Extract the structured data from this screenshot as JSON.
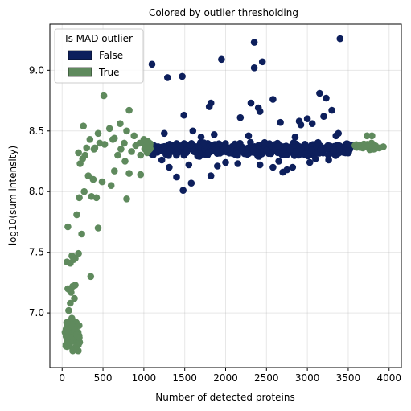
{
  "chart_data": {
    "type": "scatter",
    "title": "Colored by outlier thresholding",
    "xlabel": "Number of detected proteins",
    "ylabel": "log10(sum intensity)",
    "xlim": [
      -150,
      4150
    ],
    "ylim": [
      6.55,
      9.38
    ],
    "xticks": [
      0,
      500,
      1000,
      1500,
      2000,
      2500,
      3000,
      3500,
      4000
    ],
    "xtick_labels": [
      "0",
      "500",
      "1000",
      "1500",
      "2000",
      "2500",
      "3000",
      "3500",
      "4000"
    ],
    "yticks": [
      7.0,
      7.5,
      8.0,
      8.5,
      9.0
    ],
    "ytick_labels": [
      "7.0",
      "7.5",
      "8.0",
      "8.5",
      "9.0"
    ],
    "grid": true,
    "legend": {
      "title": "Is MAD outlier",
      "placement": "top-left",
      "entries": [
        "False",
        "True"
      ]
    },
    "colors": {
      "False": "#0d1f5c",
      "True": "#5f8a5d"
    },
    "series": [
      {
        "name": "False",
        "color": "#0d1f5c",
        "points": [
          [
            1100,
            9.05
          ],
          [
            1290,
            8.94
          ],
          [
            1470,
            8.95
          ],
          [
            1820,
            8.73
          ],
          [
            1800,
            8.7
          ],
          [
            1950,
            9.09
          ],
          [
            2350,
            9.23
          ],
          [
            2350,
            9.02
          ],
          [
            2450,
            9.07
          ],
          [
            2310,
            8.73
          ],
          [
            2400,
            8.69
          ],
          [
            2420,
            8.66
          ],
          [
            2580,
            8.76
          ],
          [
            3400,
            9.26
          ],
          [
            3150,
            8.81
          ],
          [
            3230,
            8.77
          ],
          [
            3300,
            8.67
          ],
          [
            3200,
            8.62
          ],
          [
            3000,
            8.6
          ],
          [
            2180,
            8.61
          ],
          [
            2670,
            8.57
          ],
          [
            2900,
            8.58
          ],
          [
            3060,
            8.56
          ],
          [
            3380,
            8.48
          ],
          [
            1490,
            8.63
          ],
          [
            1310,
            8.2
          ],
          [
            1400,
            8.12
          ],
          [
            1480,
            8.01
          ],
          [
            1580,
            8.07
          ],
          [
            1820,
            8.13
          ],
          [
            1900,
            8.21
          ],
          [
            2420,
            8.22
          ],
          [
            2580,
            8.2
          ],
          [
            2700,
            8.16
          ],
          [
            2750,
            8.18
          ],
          [
            2820,
            8.2
          ],
          [
            3030,
            8.24
          ],
          [
            3100,
            8.27
          ],
          [
            3260,
            8.26
          ],
          [
            1680,
            8.29
          ],
          [
            1220,
            8.26
          ],
          [
            1550,
            8.22
          ],
          [
            2000,
            8.24
          ],
          [
            2150,
            8.23
          ],
          [
            2650,
            8.25
          ],
          [
            1700,
            8.45
          ],
          [
            1860,
            8.47
          ],
          [
            2280,
            8.46
          ],
          [
            2850,
            8.45
          ],
          [
            3350,
            8.46
          ],
          [
            1600,
            8.5
          ],
          [
            1250,
            8.48
          ],
          [
            2920,
            8.55
          ]
        ],
        "band": {
          "x_from": 1060,
          "x_to": 3560,
          "y_from": 8.28,
          "y_to": 8.42,
          "count": 480
        }
      },
      {
        "name": "True",
        "color": "#5f8a5d",
        "points": [
          [
            510,
            8.79
          ],
          [
            820,
            8.67
          ],
          [
            710,
            8.56
          ],
          [
            260,
            8.54
          ],
          [
            790,
            8.5
          ],
          [
            580,
            8.52
          ],
          [
            880,
            8.46
          ],
          [
            440,
            8.48
          ],
          [
            640,
            8.44
          ],
          [
            1000,
            8.43
          ],
          [
            950,
            8.4
          ],
          [
            340,
            8.43
          ],
          [
            520,
            8.39
          ],
          [
            720,
            8.35
          ],
          [
            850,
            8.33
          ],
          [
            1020,
            8.36
          ],
          [
            900,
            8.38
          ],
          [
            200,
            8.32
          ],
          [
            280,
            8.3
          ],
          [
            400,
            8.36
          ],
          [
            460,
            8.4
          ],
          [
            620,
            8.43
          ],
          [
            760,
            8.4
          ],
          [
            960,
            8.3
          ],
          [
            1040,
            8.32
          ],
          [
            250,
            8.27
          ],
          [
            220,
            8.23
          ],
          [
            390,
            8.35
          ],
          [
            300,
            8.36
          ],
          [
            680,
            8.3
          ],
          [
            770,
            8.25
          ],
          [
            320,
            8.13
          ],
          [
            380,
            8.1
          ],
          [
            420,
            7.95
          ],
          [
            490,
            8.08
          ],
          [
            640,
            8.17
          ],
          [
            820,
            8.15
          ],
          [
            960,
            8.14
          ],
          [
            790,
            7.94
          ],
          [
            600,
            8.05
          ],
          [
            210,
            7.95
          ],
          [
            270,
            8.0
          ],
          [
            360,
            7.96
          ],
          [
            440,
            7.7
          ],
          [
            240,
            7.65
          ],
          [
            180,
            7.81
          ],
          [
            70,
            7.71
          ],
          [
            200,
            7.49
          ],
          [
            140,
            7.44
          ],
          [
            120,
            7.47
          ],
          [
            160,
            7.45
          ],
          [
            60,
            7.42
          ],
          [
            100,
            7.41
          ],
          [
            350,
            7.3
          ],
          [
            160,
            7.23
          ],
          [
            130,
            7.22
          ],
          [
            70,
            7.2
          ],
          [
            90,
            7.19
          ],
          [
            110,
            7.17
          ],
          [
            150,
            7.12
          ],
          [
            100,
            7.08
          ],
          [
            80,
            7.02
          ],
          [
            3730,
            8.46
          ],
          [
            3790,
            8.46
          ],
          [
            3930,
            8.37
          ],
          [
            3880,
            8.36
          ],
          [
            3680,
            8.36
          ]
        ],
        "band": {
          "x_from": 35,
          "x_to": 215,
          "y_from": 6.64,
          "y_to": 6.98,
          "count": 90
        },
        "band2": {
          "x_from": 1000,
          "x_to": 1080,
          "y_from": 8.3,
          "y_to": 8.44,
          "count": 14
        },
        "band3": {
          "x_from": 3580,
          "x_to": 3840,
          "y_from": 8.33,
          "y_to": 8.41,
          "count": 30
        }
      }
    ]
  }
}
